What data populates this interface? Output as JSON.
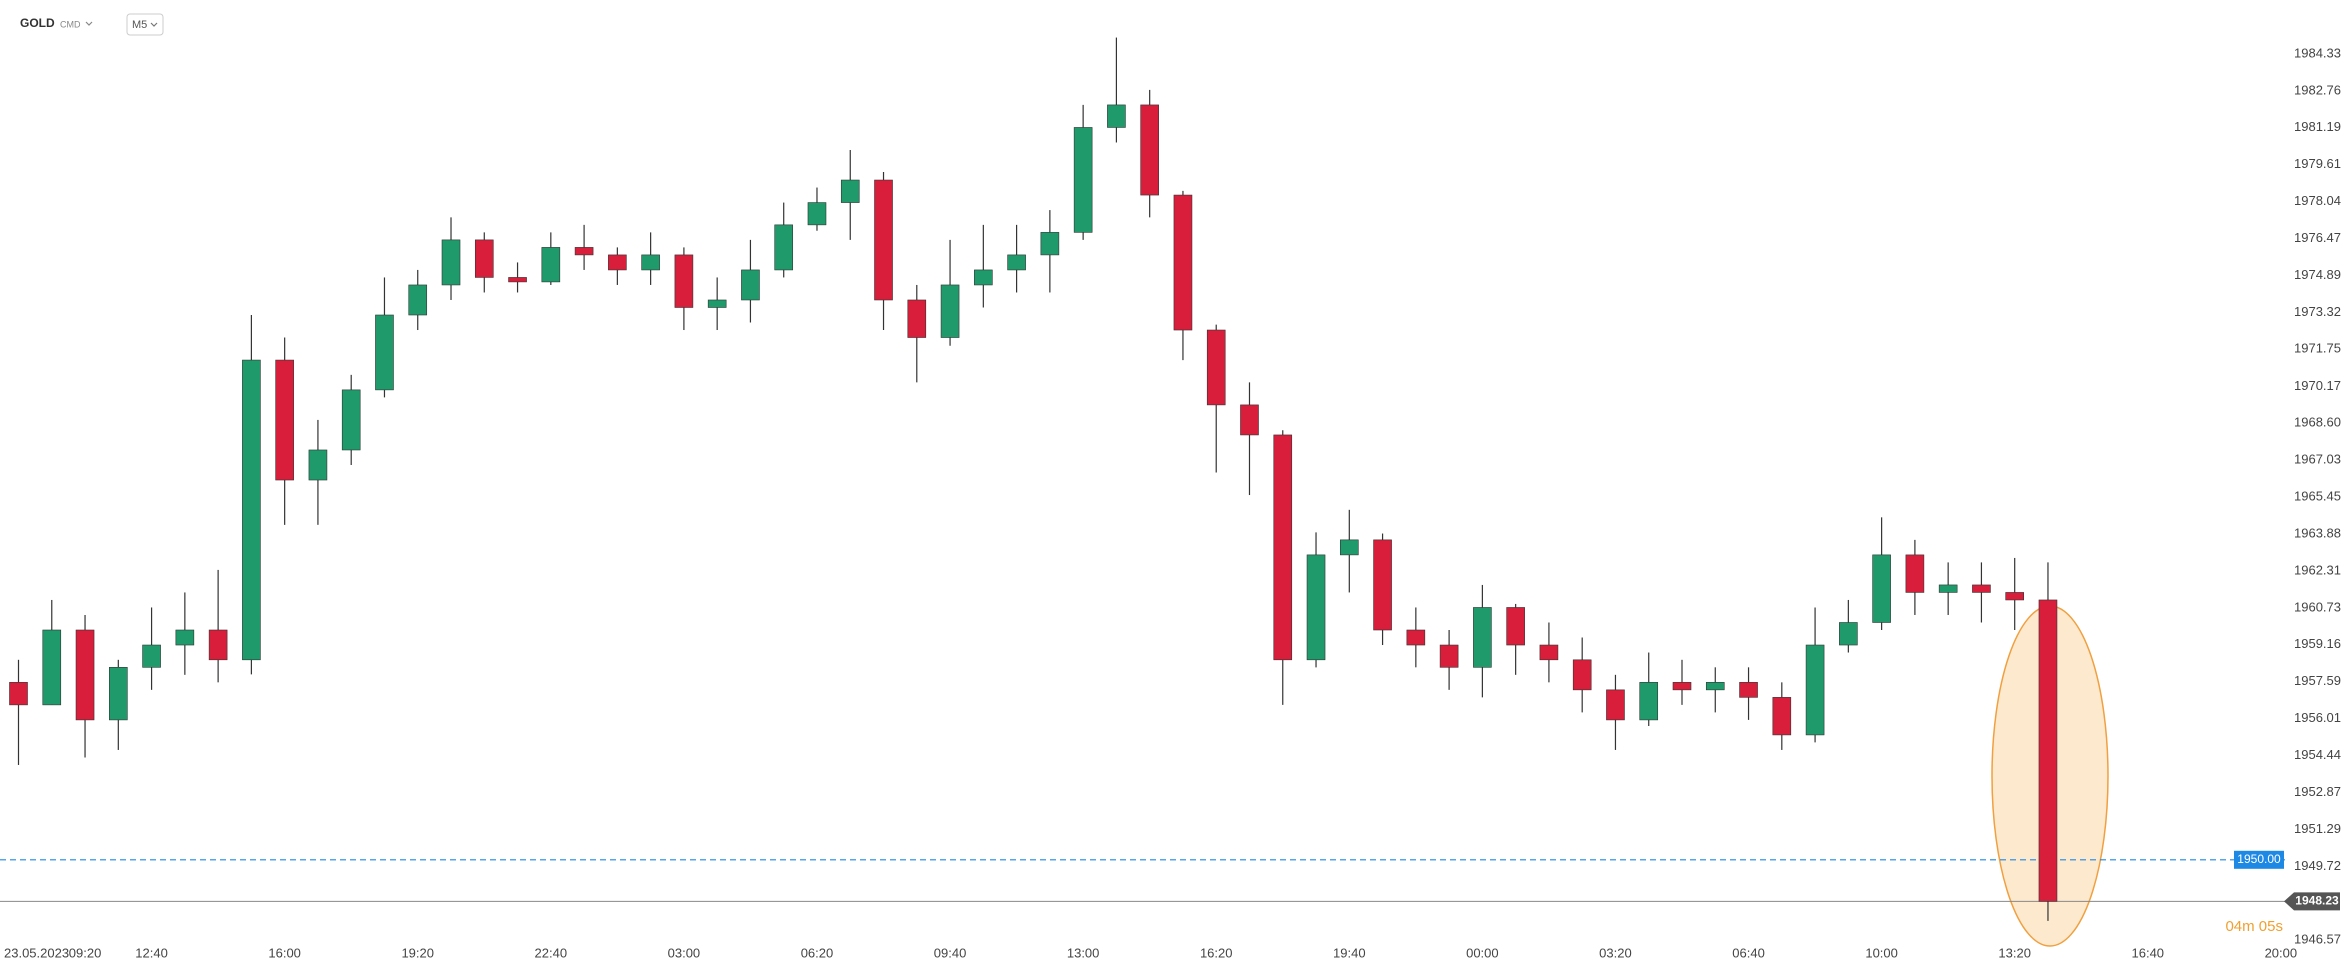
{
  "header": {
    "symbol": "GOLD",
    "market": "CMD",
    "interval": "M5"
  },
  "chart_data": {
    "type": "candlestick",
    "categories": [
      "23.05.2023",
      null,
      "09:20",
      null,
      "12:40",
      null,
      null,
      null,
      "16:00",
      null,
      null,
      null,
      "19:20",
      null,
      null,
      null,
      "22:40",
      null,
      null,
      null,
      "03:00",
      null,
      null,
      null,
      "06:20",
      null,
      null,
      null,
      "09:40",
      null,
      null,
      null,
      "13:00",
      null,
      null,
      null,
      "16:20",
      null,
      null,
      null,
      "19:40",
      null,
      null,
      null,
      "00:00",
      null,
      null,
      null,
      "03:20",
      null,
      null,
      null,
      "06:40",
      null,
      null,
      null,
      "10:00",
      null,
      null,
      null,
      "13:20",
      null,
      null,
      null,
      "16:40",
      null,
      null,
      null,
      "20:00"
    ],
    "open": [
      1957.56,
      1956.6,
      1959.79,
      1955.96,
      1958.2,
      1959.15,
      1959.79,
      1958.52,
      1971.29,
      1966.18,
      1967.46,
      1970.02,
      1973.21,
      1974.49,
      1976.41,
      1974.81,
      1974.62,
      1976.09,
      1975.77,
      1975.13,
      1975.77,
      1973.53,
      1973.85,
      1975.13,
      1977.05,
      1978.0,
      1978.96,
      1973.85,
      1972.25,
      1974.49,
      1975.13,
      1975.77,
      1976.73,
      1981.2,
      1982.16,
      1978.32,
      1972.57,
      1969.38,
      1968.1,
      1958.52,
      1962.99,
      1963.63,
      1959.79,
      1959.15,
      1958.2,
      1960.75,
      1959.15,
      1958.52,
      1957.24,
      1955.96,
      1957.56,
      1957.24,
      1957.56,
      1956.92,
      1955.32,
      1959.15,
      1960.11,
      1962.99,
      1961.39,
      1961.71,
      1961.39,
      1961.07,
      null,
      null,
      null,
      null,
      null,
      null,
      null
    ],
    "high": [
      1958.52,
      1961.07,
      1960.43,
      1958.52,
      1960.75,
      1961.39,
      1962.35,
      1973.21,
      1972.25,
      1968.74,
      1970.66,
      1974.81,
      1975.13,
      1977.37,
      1976.73,
      1975.45,
      1976.73,
      1977.05,
      1976.09,
      1976.73,
      1976.09,
      1974.81,
      1976.41,
      1978.0,
      1978.64,
      1980.24,
      1979.3,
      1974.49,
      1976.41,
      1977.05,
      1977.05,
      1977.68,
      1982.16,
      1985.03,
      1982.8,
      1978.5,
      1972.8,
      1970.34,
      1968.3,
      1963.95,
      1964.91,
      1963.9,
      1960.75,
      1959.79,
      1961.71,
      1960.9,
      1960.11,
      1959.47,
      1957.88,
      1958.83,
      1958.52,
      1958.2,
      1958.2,
      1957.56,
      1960.75,
      1961.07,
      1964.59,
      1963.63,
      1962.67,
      1962.67,
      1962.86,
      1962.67,
      null,
      null,
      null,
      null,
      null,
      null,
      null
    ],
    "low": [
      1954.04,
      1956.6,
      1954.36,
      1954.68,
      1957.24,
      1957.88,
      1957.56,
      1957.9,
      1964.27,
      1964.27,
      1966.82,
      1969.7,
      1972.57,
      1973.85,
      1974.17,
      1974.17,
      1974.49,
      1975.13,
      1974.49,
      1974.49,
      1972.57,
      1972.57,
      1972.89,
      1974.81,
      1976.8,
      1976.41,
      1972.57,
      1970.34,
      1971.9,
      1973.53,
      1974.17,
      1974.17,
      1976.41,
      1980.56,
      1977.37,
      1971.29,
      1966.5,
      1965.54,
      1956.6,
      1958.2,
      1961.39,
      1959.15,
      1958.2,
      1957.24,
      1956.92,
      1957.88,
      1957.56,
      1956.28,
      1954.68,
      1955.7,
      1956.6,
      1956.28,
      1955.96,
      1954.68,
      1955.0,
      1958.83,
      1959.79,
      1960.43,
      1960.43,
      1960.11,
      1959.79,
      1947.4,
      null,
      null,
      null,
      null,
      null,
      null,
      null
    ],
    "close": [
      1956.6,
      1959.79,
      1955.96,
      1958.2,
      1959.15,
      1959.79,
      1958.52,
      1971.29,
      1966.18,
      1967.46,
      1970.02,
      1973.21,
      1974.49,
      1976.41,
      1974.81,
      1974.62,
      1976.09,
      1975.77,
      1975.13,
      1975.77,
      1973.53,
      1973.85,
      1975.13,
      1977.05,
      1978.0,
      1978.96,
      1973.85,
      1972.25,
      1974.49,
      1975.13,
      1975.77,
      1976.73,
      1981.2,
      1982.16,
      1978.32,
      1972.57,
      1969.38,
      1968.1,
      1958.52,
      1962.99,
      1963.63,
      1959.79,
      1959.15,
      1958.2,
      1960.75,
      1959.15,
      1958.52,
      1957.24,
      1955.96,
      1957.56,
      1957.24,
      1957.56,
      1956.92,
      1955.32,
      1959.15,
      1960.11,
      1962.99,
      1961.39,
      1961.71,
      1961.39,
      1961.07,
      1948.23,
      null,
      null,
      null,
      null,
      null,
      null,
      null
    ],
    "up_color": "#1f9a6b",
    "down_color": "#d81e3a",
    "ylim": [
      1946.37,
      1986.63
    ],
    "yticks": [
      1984.33,
      1982.76,
      1981.19,
      1979.61,
      1978.04,
      1976.47,
      1974.89,
      1973.32,
      1971.75,
      1970.17,
      {
        "value": 1968.6,
        "label": "1968.60"
      },
      1967.03,
      1965.45,
      1963.88,
      1962.31,
      1960.73,
      1959.16,
      1957.59,
      1956.01,
      1954.44,
      1952.87,
      1951.29,
      1949.72,
      1946.57
    ],
    "grid": false,
    "hlines": [
      {
        "value": 1950,
        "label": "1950.00",
        "color": "#1e88e5"
      }
    ],
    "last_price": {
      "value": 1948.23,
      "color": "#555555"
    },
    "countdown": "04m 05s"
  }
}
